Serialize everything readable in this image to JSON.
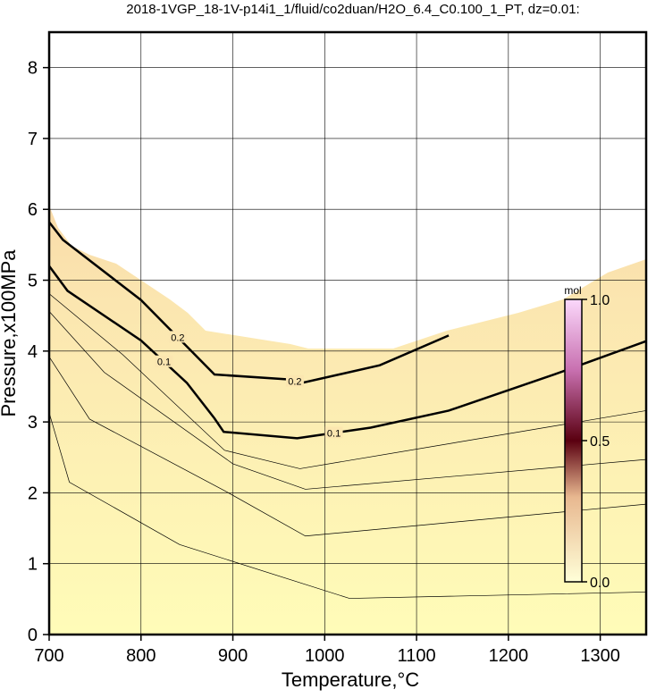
{
  "chart_data": {
    "type": "contour",
    "title": "2018-1VGP_18-1V-p14i1_1/fluid/co2duan/H2O_6.4_C0.100_1_PT, dz=0.01:",
    "x_label": "Temperature,°C",
    "y_label": "Pressure,x100MPa",
    "xlim": [
      700,
      1350
    ],
    "ylim": [
      0,
      8.5
    ],
    "xticks": [
      700,
      800,
      900,
      1000,
      1100,
      1200,
      1300
    ],
    "yticks": [
      0,
      1,
      2,
      3,
      4,
      5,
      6,
      7,
      8
    ],
    "grid": true,
    "contours": [
      {
        "level": 0.01,
        "color": "#000000",
        "x": [
          700,
          722,
          842,
          1027,
          1350
        ],
        "y": [
          3.13,
          2.15,
          1.27,
          0.51,
          0.6
        ]
      },
      {
        "level": 0.02,
        "color": "#000000",
        "x": [
          700,
          744,
          891,
          979,
          1350
        ],
        "y": [
          3.92,
          3.04,
          2.03,
          1.39,
          1.84
        ]
      },
      {
        "level": 0.03,
        "color": "#000000",
        "x": [
          700,
          760,
          900,
          979,
          1350
        ],
        "y": [
          4.56,
          3.7,
          2.41,
          2.05,
          2.47
        ]
      },
      {
        "level": 0.05,
        "color": "#000000",
        "x": [
          700,
          780,
          891,
          973,
          1350
        ],
        "y": [
          4.81,
          3.95,
          2.6,
          2.34,
          3.16
        ]
      },
      {
        "level": 0.1,
        "color": "#000000",
        "x": [
          700,
          720,
          800,
          850,
          880,
          890,
          970,
          1050,
          1135,
          1250,
          1350
        ],
        "y": [
          5.2,
          4.85,
          4.15,
          3.55,
          3.05,
          2.86,
          2.77,
          2.92,
          3.16,
          3.67,
          4.14
        ]
      },
      {
        "level": 0.2,
        "color": "#000000",
        "x": [
          700,
          715,
          800,
          880,
          960,
          975,
          1060,
          1135
        ],
        "y": [
          5.82,
          5.57,
          4.72,
          3.67,
          3.6,
          3.55,
          3.8,
          4.22
        ]
      }
    ],
    "colorbar": {
      "label": "mol",
      "lim": [
        0,
        1
      ],
      "ticks": [
        {
          "value": 0,
          "label": "0.0"
        },
        {
          "value": 0.5,
          "label": "0.5"
        },
        {
          "value": 1,
          "label": "1.0"
        }
      ]
    }
  }
}
